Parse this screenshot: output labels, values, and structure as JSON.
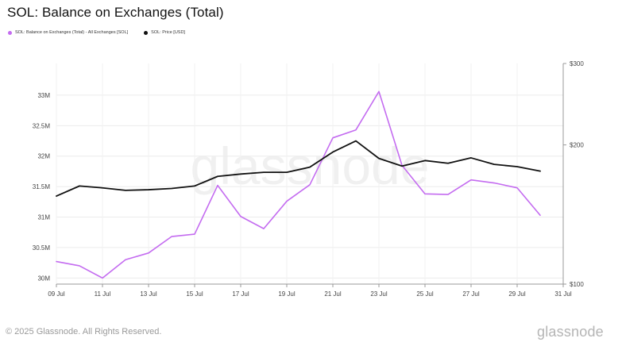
{
  "header": {
    "title": "SOL: Balance on Exchanges (Total)"
  },
  "legend": [
    {
      "label": "SOL: Balance on Exchanges (Total) - All Exchanges [SOL]",
      "color": "#c46cf0"
    },
    {
      "label": "SOL: Price [USD]",
      "color": "#111111"
    }
  ],
  "watermark": "glassnode",
  "footer": {
    "copyright": "© 2025 Glassnode. All Rights Reserved.",
    "brand": "glassnode"
  },
  "chart_data": {
    "type": "line",
    "x": [
      "09 Jul",
      "10 Jul",
      "11 Jul",
      "12 Jul",
      "13 Jul",
      "14 Jul",
      "15 Jul",
      "16 Jul",
      "17 Jul",
      "18 Jul",
      "19 Jul",
      "20 Jul",
      "21 Jul",
      "22 Jul",
      "23 Jul",
      "24 Jul",
      "25 Jul",
      "26 Jul",
      "27 Jul",
      "28 Jul",
      "29 Jul",
      "30 Jul"
    ],
    "x_ticks": [
      "09 Jul",
      "11 Jul",
      "13 Jul",
      "15 Jul",
      "17 Jul",
      "19 Jul",
      "21 Jul",
      "23 Jul",
      "25 Jul",
      "27 Jul",
      "29 Jul",
      "31 Jul"
    ],
    "y_left": {
      "ticks": [
        30000000,
        30500000,
        31000000,
        31500000,
        32000000,
        32500000,
        33000000
      ],
      "tick_labels": [
        "30M",
        "30.5M",
        "31M",
        "31.5M",
        "32M",
        "32.5M",
        "33M"
      ],
      "range": [
        29900000,
        33520000
      ]
    },
    "y_right": {
      "scale": "log",
      "ticks": [
        100,
        200,
        300
      ],
      "tick_labels": [
        "$100",
        "$200",
        "$300"
      ],
      "range": [
        100,
        300
      ]
    },
    "grid": true,
    "legend_position": "top-left",
    "series": [
      {
        "name": "SOL: Balance on Exchanges (Total) - All Exchanges [SOL]",
        "axis": "left",
        "color": "#c46cf0",
        "values": [
          30270000,
          30200000,
          30000000,
          30300000,
          30410000,
          30680000,
          30720000,
          31520000,
          31010000,
          30810000,
          31260000,
          31530000,
          32300000,
          32430000,
          33060000,
          31850000,
          31380000,
          31370000,
          31610000,
          31560000,
          31480000,
          31030000
        ]
      },
      {
        "name": "SOL: Price [USD]",
        "axis": "right",
        "color": "#111111",
        "values": [
          155,
          163,
          161.5,
          159.5,
          160,
          161,
          163,
          171,
          173,
          174.5,
          174.5,
          179,
          193,
          204,
          187,
          180,
          185,
          182.5,
          187.5,
          181.5,
          179.5,
          175.5
        ]
      }
    ]
  }
}
